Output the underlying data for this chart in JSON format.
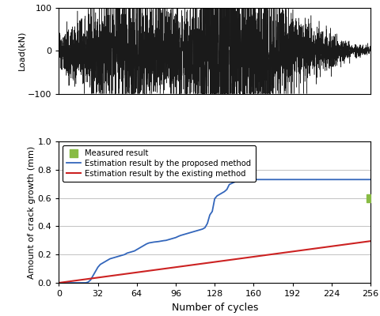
{
  "top_plot": {
    "ylabel": "Load(kN)",
    "ylim": [
      -100,
      100
    ],
    "yticks": [
      -100,
      0,
      100
    ],
    "color": "#1a1a1a",
    "linewidth": 0.35
  },
  "bottom_plot": {
    "ylabel": "Amount of crack growth (mm)",
    "xlabel": "Number of cycles",
    "xlim": [
      0,
      256
    ],
    "ylim": [
      0,
      1
    ],
    "xticks": [
      0,
      32,
      64,
      96,
      128,
      160,
      192,
      224,
      256
    ],
    "yticks": [
      0,
      0.2,
      0.4,
      0.6,
      0.8,
      1.0
    ],
    "blue_line_color": "#3366bb",
    "red_line_color": "#cc2222",
    "measured_color": "#88bb44",
    "measured_x": 256,
    "measured_y": 0.6,
    "legend_items": [
      "Measured result",
      "Estimation result by the proposed method",
      "Estimation result by the existing method"
    ],
    "blue_x": [
      0,
      22,
      24,
      26,
      28,
      30,
      32,
      34,
      36,
      38,
      40,
      42,
      44,
      46,
      48,
      50,
      52,
      54,
      56,
      58,
      60,
      62,
      64,
      66,
      68,
      70,
      72,
      74,
      76,
      78,
      80,
      82,
      84,
      86,
      88,
      90,
      92,
      94,
      96,
      98,
      100,
      102,
      104,
      106,
      108,
      110,
      112,
      114,
      116,
      118,
      120,
      122,
      124,
      126,
      128,
      130,
      132,
      134,
      136,
      138,
      140,
      145,
      150,
      155,
      160,
      165,
      170,
      180,
      190,
      200,
      220,
      240,
      256
    ],
    "blue_y": [
      0,
      0,
      0.005,
      0.02,
      0.05,
      0.08,
      0.11,
      0.13,
      0.14,
      0.15,
      0.16,
      0.17,
      0.175,
      0.18,
      0.185,
      0.19,
      0.195,
      0.2,
      0.21,
      0.215,
      0.22,
      0.225,
      0.235,
      0.245,
      0.255,
      0.265,
      0.275,
      0.282,
      0.285,
      0.288,
      0.29,
      0.292,
      0.295,
      0.298,
      0.3,
      0.305,
      0.31,
      0.315,
      0.32,
      0.328,
      0.335,
      0.34,
      0.345,
      0.35,
      0.355,
      0.36,
      0.365,
      0.37,
      0.375,
      0.38,
      0.39,
      0.42,
      0.48,
      0.505,
      0.595,
      0.615,
      0.625,
      0.635,
      0.645,
      0.66,
      0.695,
      0.715,
      0.725,
      0.73,
      0.73,
      0.73,
      0.73,
      0.73,
      0.73,
      0.73,
      0.73,
      0.73,
      0.73
    ],
    "red_x": [
      0,
      256
    ],
    "red_y": [
      0,
      0.295
    ]
  }
}
